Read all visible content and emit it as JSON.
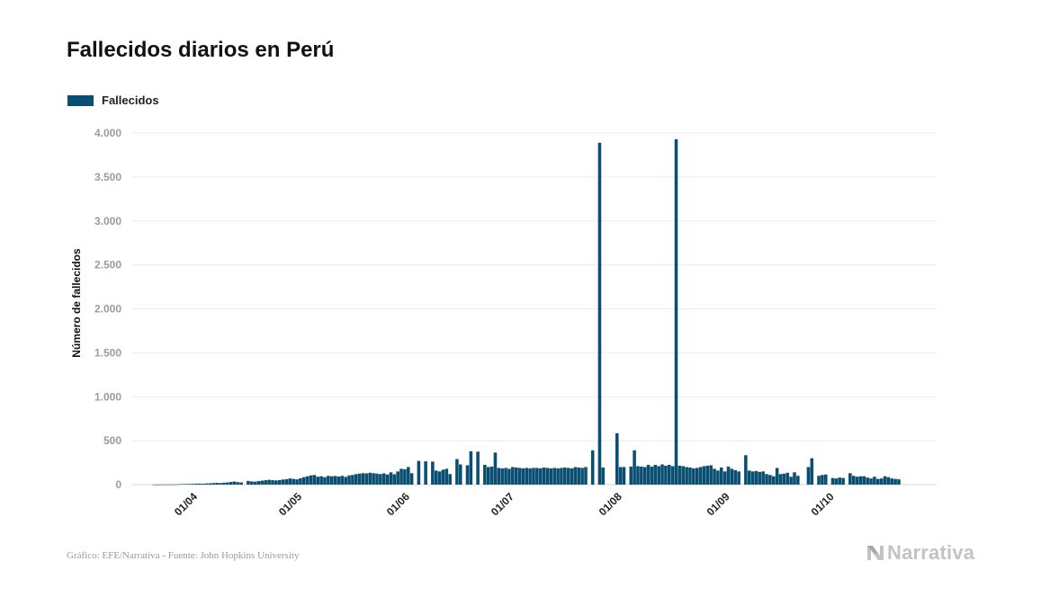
{
  "title": "Fallecidos diarios en Perú",
  "legend": {
    "label": "Fallecidos",
    "color": "#0a4f72"
  },
  "footer": {
    "source": "Gráfico: EFE/Narrativa - Fuente: John Hopkins University",
    "brand": "Narrativa",
    "brand_color": "#c3c3c3"
  },
  "chart_data": {
    "type": "bar",
    "title": "Fallecidos diarios en Perú",
    "ylabel": "Número de fallecidos",
    "xlabel": "",
    "ylim": [
      0,
      4000
    ],
    "yticks": [
      0,
      500,
      1000,
      1500,
      2000,
      2500,
      3000,
      3500,
      4000
    ],
    "ytick_labels": [
      "0",
      "500",
      "1.000",
      "1.500",
      "2.000",
      "2.500",
      "3.000",
      "3.500",
      "4.000"
    ],
    "xtick_labels": [
      "01/04",
      "01/05",
      "01/06",
      "01/07",
      "01/08",
      "01/09",
      "01/10"
    ],
    "xtick_dates": [
      "2020-04-01",
      "2020-05-01",
      "2020-06-01",
      "2020-07-01",
      "2020-08-01",
      "2020-09-01",
      "2020-10-01"
    ],
    "grid": true,
    "legend_position": "top-left",
    "series": [
      {
        "name": "Fallecidos",
        "color": "#0a4f72",
        "start_date": "2020-03-19",
        "values": [
          1,
          1,
          1,
          2,
          2,
          3,
          2,
          5,
          6,
          7,
          8,
          9,
          11,
          12,
          10,
          14,
          15,
          18,
          20,
          18,
          22,
          25,
          30,
          35,
          28,
          25,
          0,
          42,
          36,
          34,
          40,
          45,
          50,
          55,
          50,
          48,
          52,
          58,
          62,
          70,
          65,
          60,
          72,
          85,
          95,
          105,
          110,
          90,
          95,
          85,
          100,
          95,
          98,
          92,
          100,
          88,
          105,
          110,
          120,
          125,
          130,
          128,
          135,
          130,
          125,
          120,
          128,
          115,
          140,
          118,
          150,
          180,
          175,
          200,
          130,
          0,
          270,
          0,
          265,
          0,
          262,
          160,
          150,
          170,
          180,
          120,
          0,
          290,
          230,
          0,
          220,
          380,
          0,
          375,
          0,
          225,
          200,
          205,
          365,
          190,
          185,
          190,
          180,
          200,
          195,
          190,
          185,
          190,
          185,
          190,
          190,
          185,
          195,
          190,
          185,
          190,
          185,
          190,
          195,
          190,
          185,
          200,
          195,
          190,
          200,
          0,
          390,
          0,
          3890,
          195,
          0,
          0,
          0,
          585,
          200,
          200,
          0,
          205,
          390,
          210,
          205,
          200,
          225,
          205,
          225,
          210,
          230,
          215,
          225,
          210,
          3930,
          215,
          210,
          200,
          195,
          185,
          190,
          200,
          210,
          215,
          220,
          180,
          160,
          195,
          150,
          205,
          180,
          165,
          150,
          0,
          335,
          160,
          150,
          155,
          145,
          150,
          120,
          110,
          95,
          190,
          120,
          125,
          135,
          90,
          140,
          100,
          0,
          0,
          200,
          300,
          0,
          100,
          110,
          115,
          0,
          75,
          70,
          80,
          75,
          0,
          130,
          100,
          90,
          95,
          95,
          80,
          70,
          90,
          65,
          70,
          95,
          85,
          70,
          65,
          60
        ]
      }
    ]
  }
}
